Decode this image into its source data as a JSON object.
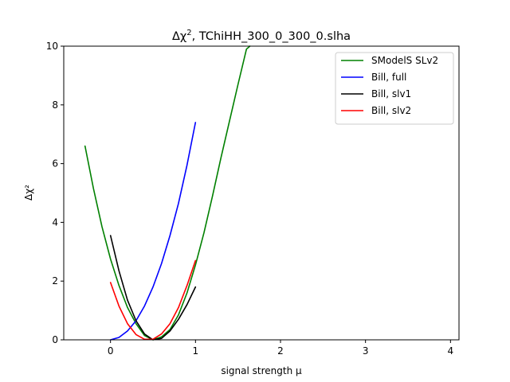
{
  "chart_data": {
    "type": "line",
    "title_prefix": "Δχ",
    "title_sup": "2",
    "title_suffix": ", TChiHH_300_0_300_0.slha",
    "xlabel": "signal strength μ",
    "ylabel": "Δχ²",
    "xlim": [
      -0.55,
      4.1
    ],
    "ylim": [
      0,
      10
    ],
    "xticks": [
      0,
      1,
      2,
      3,
      4
    ],
    "yticks": [
      0,
      2,
      4,
      6,
      8,
      10
    ],
    "grid": false,
    "legend_position": "top-right",
    "series": [
      {
        "name": "SModelS SLv2",
        "color": "#008000",
        "x": [
          -0.3,
          -0.2,
          -0.1,
          0.0,
          0.1,
          0.2,
          0.3,
          0.4,
          0.5,
          0.6,
          0.7,
          0.8,
          0.9,
          1.0,
          1.1,
          1.2,
          1.3,
          1.4,
          1.5,
          1.6,
          1.64
        ],
        "y": [
          6.6,
          5.15,
          3.85,
          2.75,
          1.85,
          1.1,
          0.55,
          0.15,
          0.0,
          0.1,
          0.35,
          0.85,
          1.6,
          2.55,
          3.65,
          4.9,
          6.2,
          7.45,
          8.7,
          9.9,
          10.0
        ]
      },
      {
        "name": "Bill, full",
        "color": "#0000ff",
        "x": [
          0.0,
          0.1,
          0.2,
          0.3,
          0.4,
          0.5,
          0.6,
          0.7,
          0.8,
          0.9,
          1.0
        ],
        "y": [
          0.0,
          0.08,
          0.3,
          0.65,
          1.15,
          1.8,
          2.6,
          3.55,
          4.65,
          5.95,
          7.4
        ]
      },
      {
        "name": "Bill, slv1",
        "color": "#000000",
        "x": [
          0.0,
          0.1,
          0.2,
          0.3,
          0.4,
          0.5,
          0.6,
          0.7,
          0.8,
          0.9,
          1.0
        ],
        "y": [
          3.55,
          2.35,
          1.35,
          0.65,
          0.2,
          0.0,
          0.05,
          0.3,
          0.7,
          1.2,
          1.8
        ]
      },
      {
        "name": "Bill, slv2",
        "color": "#ff0000",
        "x": [
          0.0,
          0.1,
          0.2,
          0.3,
          0.4,
          0.5,
          0.6,
          0.7,
          0.8,
          0.9,
          1.0
        ],
        "y": [
          1.95,
          1.15,
          0.55,
          0.18,
          0.02,
          0.02,
          0.2,
          0.55,
          1.1,
          1.85,
          2.7
        ]
      }
    ]
  }
}
